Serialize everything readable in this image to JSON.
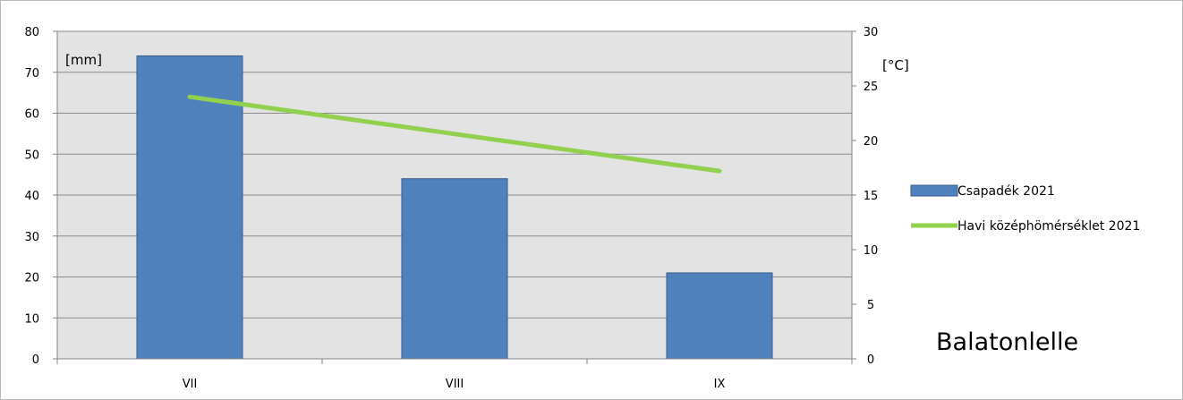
{
  "chart_data": {
    "type": "bar",
    "categories": [
      "VII",
      "VIII",
      "IX"
    ],
    "series": [
      {
        "name": "Csapadék 2021",
        "type": "bar",
        "axis": "left",
        "values": [
          74,
          44,
          21
        ],
        "color": "#4f81bd"
      },
      {
        "name": "Havi középhömérséklet 2021",
        "type": "line",
        "axis": "right",
        "values": [
          24,
          20.6,
          17.2
        ],
        "color": "#92d050"
      }
    ],
    "y_left": {
      "label": "[mm]",
      "min": 0,
      "max": 80,
      "step": 10,
      "ticks": [
        "0",
        "10",
        "20",
        "30",
        "40",
        "50",
        "60",
        "70",
        "80"
      ]
    },
    "y_right": {
      "label": "[°C]",
      "min": 0,
      "max": 30,
      "step": 5,
      "ticks": [
        "0",
        "5",
        "10",
        "15",
        "20",
        "25",
        "30"
      ]
    },
    "annotation": "Balatonlelle",
    "grid": true,
    "plot_background": "#e3e3e3",
    "legend_position": "right"
  }
}
